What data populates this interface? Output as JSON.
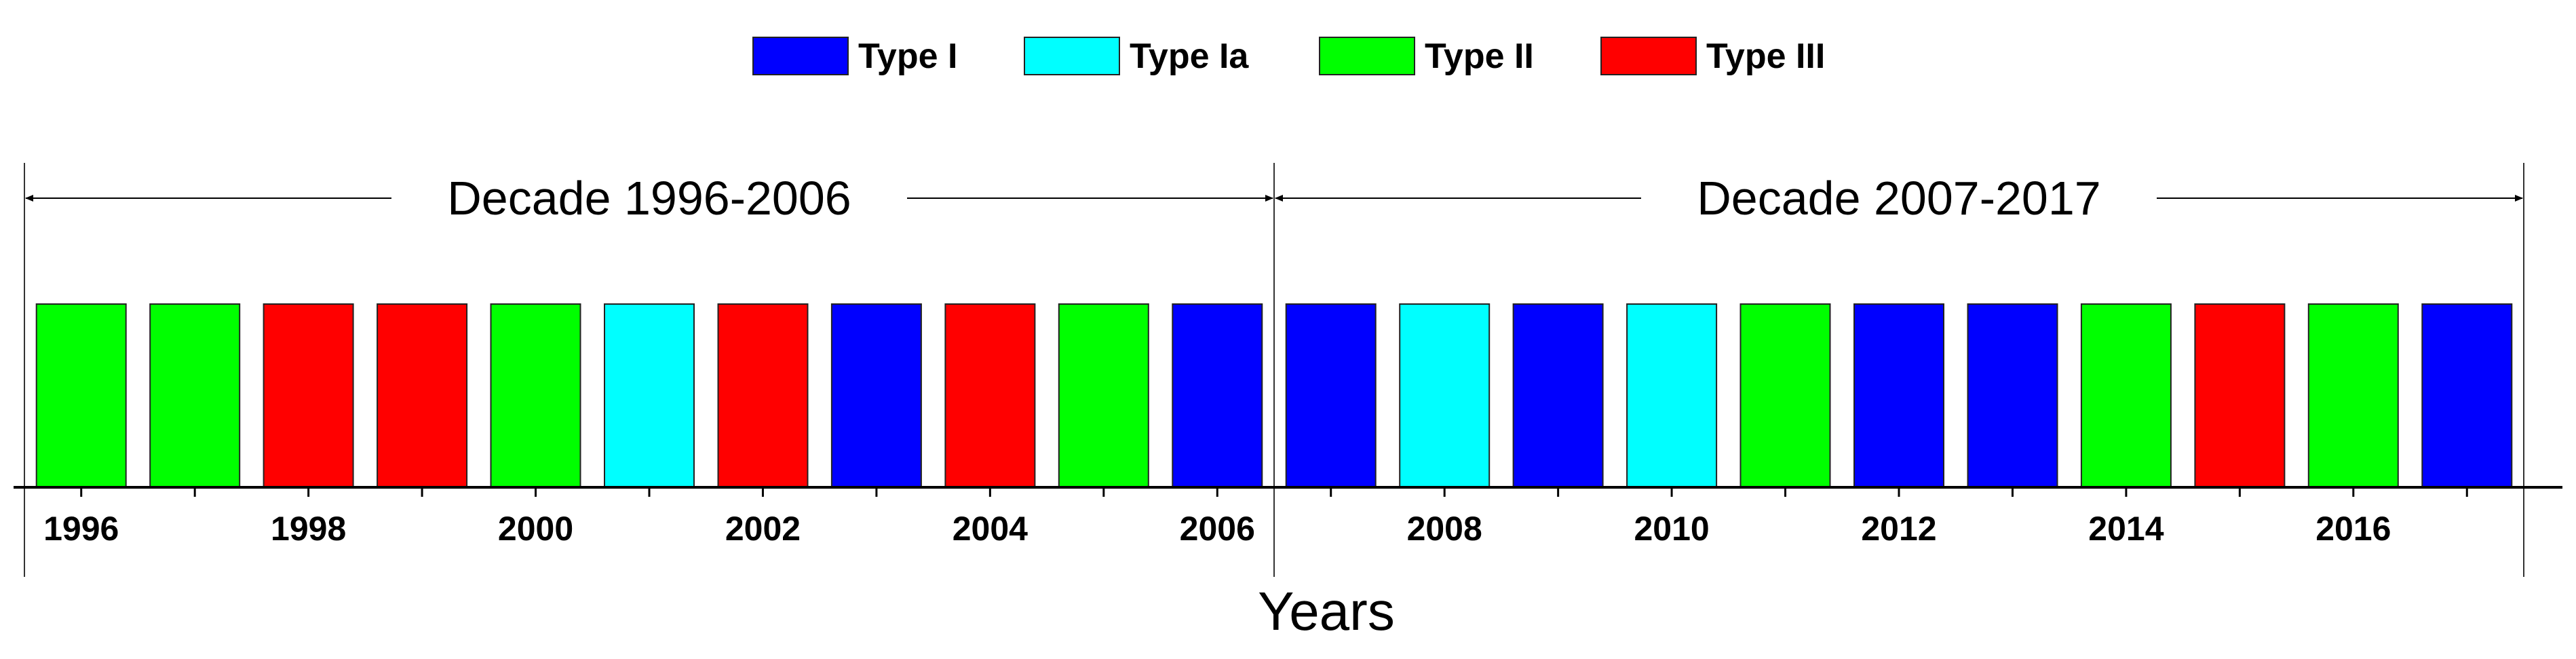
{
  "chart_data": {
    "type": "bar",
    "title": "",
    "xlabel": "Years",
    "ylabel": "",
    "legend_position": "top-center",
    "grid": false,
    "xlim": [
      1995.5,
      2017.5
    ],
    "categories": [
      "1996",
      "1997",
      "1998",
      "1999",
      "2000",
      "2001",
      "2002",
      "2003",
      "2004",
      "2005",
      "2006",
      "2007",
      "2008",
      "2009",
      "2010",
      "2011",
      "2012",
      "2013",
      "2014",
      "2015",
      "2016",
      "2017"
    ],
    "tick_labels": [
      "1996",
      "1998",
      "2000",
      "2002",
      "2004",
      "2006",
      "2008",
      "2010",
      "2012",
      "2014",
      "2016"
    ],
    "types": [
      "Type II",
      "Type II",
      "Type III",
      "Type III",
      "Type II",
      "Type Ia",
      "Type III",
      "Type I",
      "Type III",
      "Type II",
      "Type I",
      "Type I",
      "Type Ia",
      "Type I",
      "Type Ia",
      "Type II",
      "Type I",
      "Type I",
      "Type II",
      "Type III",
      "Type II",
      "Type I"
    ],
    "legend": [
      {
        "name": "Type I",
        "color": "#0000ff"
      },
      {
        "name": "Type Ia",
        "color": "#00ffff"
      },
      {
        "name": "Type II",
        "color": "#00ff00"
      },
      {
        "name": "Type III",
        "color": "#ff0000"
      }
    ],
    "annotations": [
      {
        "label": "Decade 1996-2006",
        "start_year": 1996,
        "end_year": 2006
      },
      {
        "label": "Decade 2007-2017",
        "start_year": 2007,
        "end_year": 2017
      }
    ]
  }
}
